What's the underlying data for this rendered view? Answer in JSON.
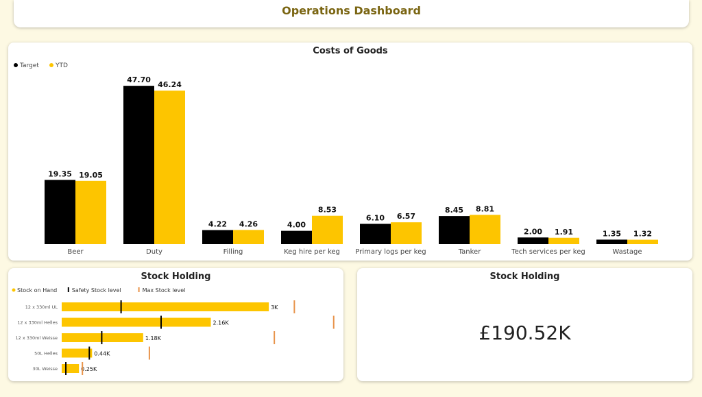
{
  "header": {
    "title": "Operations Dashboard"
  },
  "colors": {
    "target": "#000000",
    "ytd": "#fdc500",
    "safety": "#000000",
    "max": "#e8934a"
  },
  "chart_data": [
    {
      "type": "bar",
      "title": "Costs of Goods",
      "categories": [
        "Beer",
        "Duty",
        "Filling",
        "Keg hire per keg",
        "Primary logs per keg",
        "Tanker",
        "Tech services per keg",
        "Wastage"
      ],
      "series": [
        {
          "name": "Target",
          "values": [
            19.35,
            47.7,
            4.22,
            4.0,
            6.1,
            8.45,
            2.0,
            1.35
          ]
        },
        {
          "name": "YTD",
          "values": [
            19.05,
            46.24,
            4.26,
            8.53,
            6.57,
            8.81,
            1.91,
            1.32
          ]
        }
      ],
      "ylim": [
        0,
        50
      ],
      "legend": "top-left",
      "grid": false
    },
    {
      "type": "bar",
      "orientation": "horizontal",
      "title": "Stock Holding",
      "categories": [
        "12 x 330ml UL",
        "12 x 330ml Helles",
        "12 x 330ml Weisse",
        "50L Helles",
        "30L Weisse"
      ],
      "series": [
        {
          "name": "Stock on Hand",
          "values": [
            3.0,
            2.16,
            1.18,
            0.44,
            0.25
          ],
          "labels": [
            "3K",
            "2.16K",
            "1.18K",
            "0.44K",
            "0.25K"
          ]
        },
        {
          "name": "Safety Stock level",
          "values": [
            0.86,
            1.44,
            0.58,
            0.4,
            0.06
          ]
        },
        {
          "name": "Max Stock level",
          "values": [
            3.37,
            3.94,
            3.08,
            1.27,
            0.3
          ]
        }
      ],
      "unit": "K",
      "legend": "top-left",
      "grid": false
    }
  ],
  "kpi": {
    "title": "Stock Holding",
    "value": "£190.52K"
  }
}
